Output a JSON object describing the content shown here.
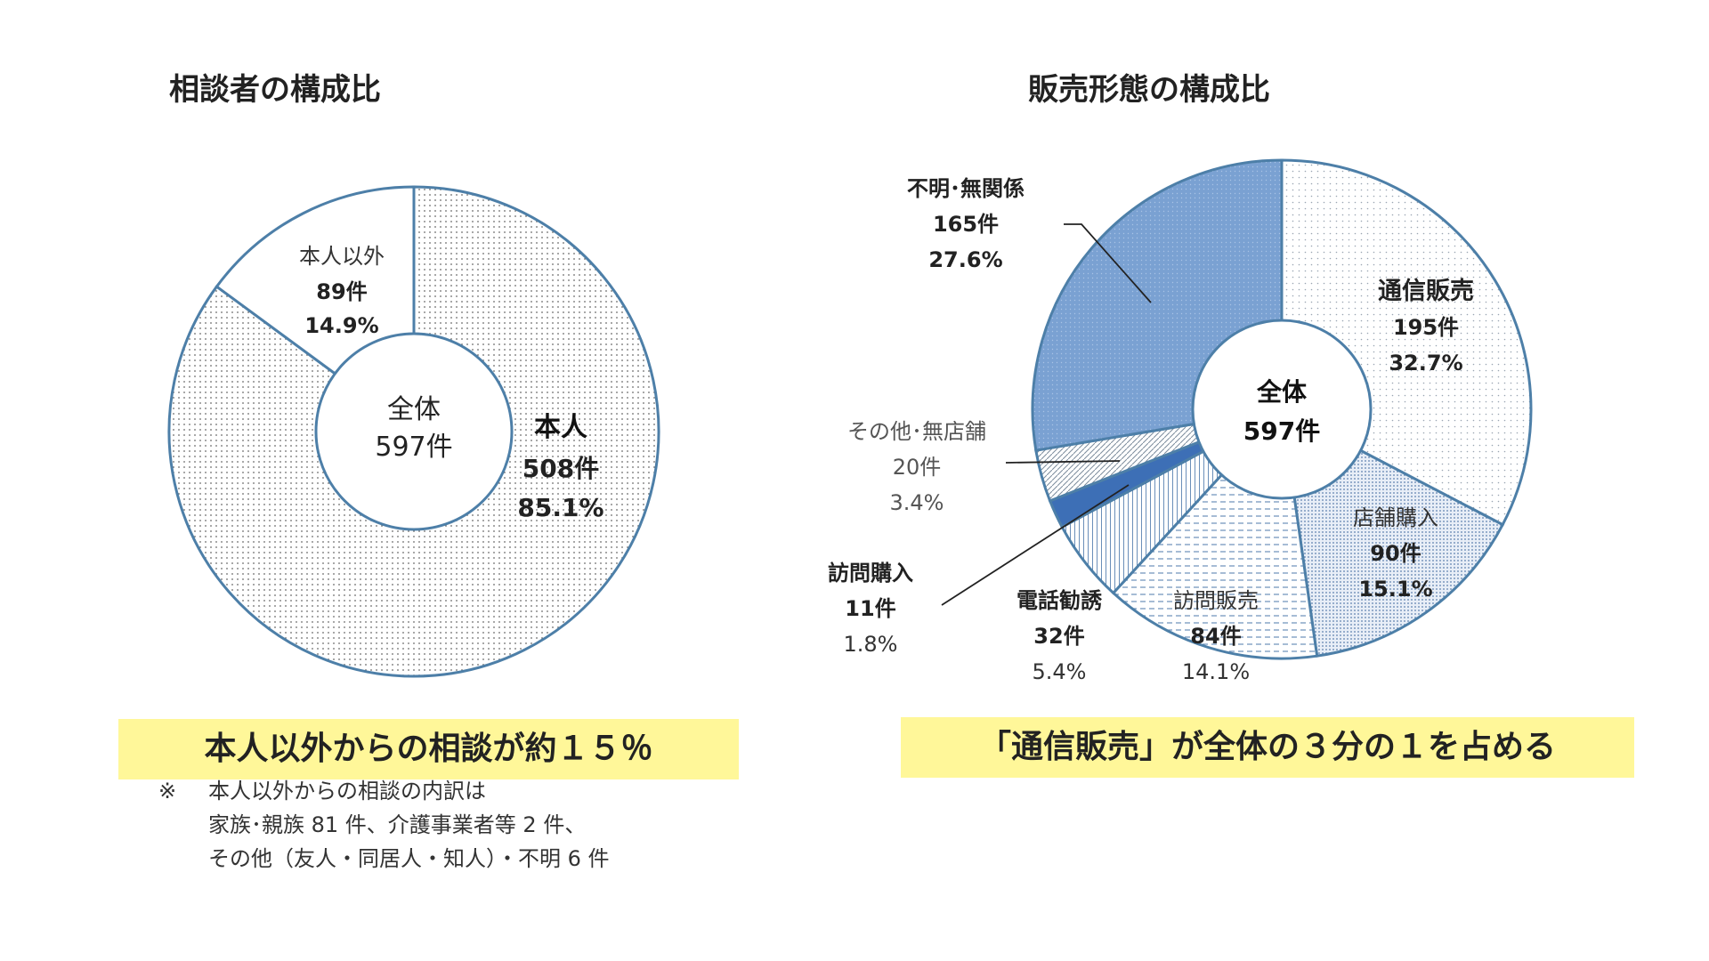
{
  "colors": {
    "ring": "#4d7fa8",
    "dot": "#6a6a6a",
    "blue": "#7aa1d2",
    "blue_dark": "#3d6fb6",
    "banner": "#fff799"
  },
  "chart_data": [
    {
      "type": "pie",
      "title": "相談者の構成比",
      "center": {
        "line1": "全体",
        "line2": "597件"
      },
      "total": 597,
      "slices": [
        {
          "name": "本人",
          "count": 508,
          "count_label": "508件",
          "percent": 85.1,
          "percent_label": "85.1%"
        },
        {
          "name": "本人以外",
          "count": 89,
          "count_label": "89件",
          "percent": 14.9,
          "percent_label": "14.9%"
        }
      ]
    },
    {
      "type": "pie",
      "title": "販売形態の構成比",
      "center": {
        "line1": "全体",
        "line2": "597件"
      },
      "total": 597,
      "slices": [
        {
          "name": "通信販売",
          "count": 195,
          "count_label": "195件",
          "percent": 32.7,
          "percent_label": "32.7%"
        },
        {
          "name": "店舗購入",
          "count": 90,
          "count_label": "90件",
          "percent": 15.1,
          "percent_label": "15.1%"
        },
        {
          "name": "訪問販売",
          "count": 84,
          "count_label": "84件",
          "percent": 14.1,
          "percent_label": "14.1%"
        },
        {
          "name": "電話勧誘",
          "count": 32,
          "count_label": "32件",
          "percent": 5.4,
          "percent_label": "5.4%"
        },
        {
          "name": "訪問購入",
          "count": 11,
          "count_label": "11件",
          "percent": 1.8,
          "percent_label": "1.8%"
        },
        {
          "name": "その他･無店舗",
          "count": 20,
          "count_label": "20件",
          "percent": 3.4,
          "percent_label": "3.4%"
        },
        {
          "name": "不明･無関係",
          "count": 165,
          "count_label": "165件",
          "percent": 27.6,
          "percent_label": "27.6%"
        }
      ]
    }
  ],
  "banners": {
    "left": "本人以外からの相談が約１５％",
    "right": "「通信販売」が全体の３分の１を占める"
  },
  "note": {
    "mark": "※",
    "line1": "本人以外からの相談の内訳は",
    "line2": "家族･親族 81 件、介護事業者等 2 件、",
    "line3": "その他（友人・同居人・知人）・不明 6 件"
  }
}
